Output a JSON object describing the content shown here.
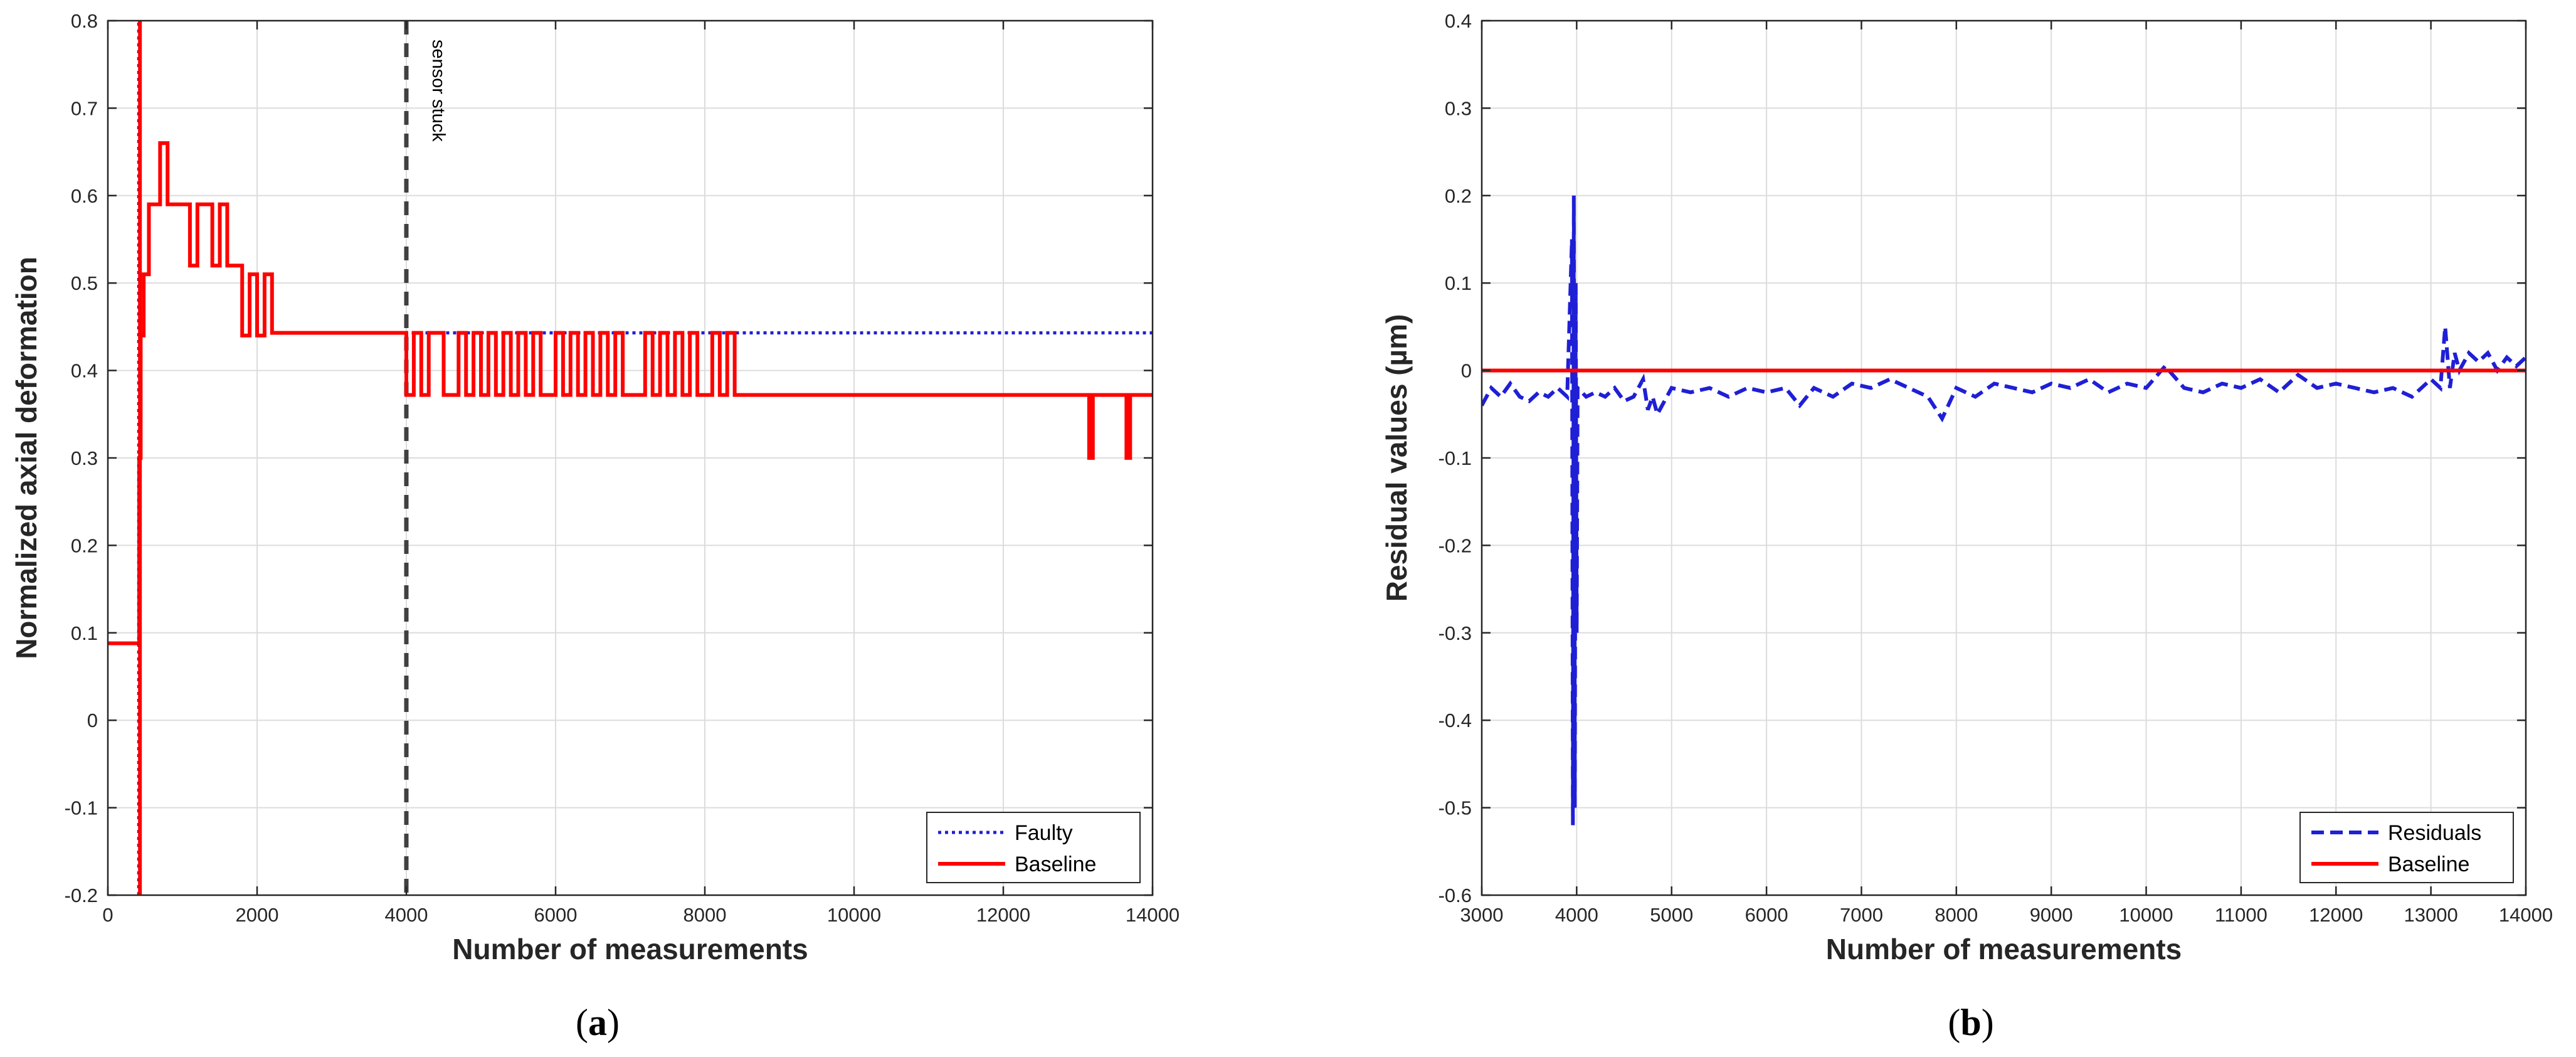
{
  "chart_data": [
    {
      "panel_label": "a",
      "type": "line",
      "xlabel": "Number of measurements",
      "ylabel": "Normalized axial deformation",
      "xlim": [
        0,
        14000
      ],
      "ylim": [
        -0.2,
        0.8
      ],
      "xticks": [
        0,
        2000,
        4000,
        6000,
        8000,
        10000,
        12000,
        14000
      ],
      "xtick_labels": [
        "0",
        "2000",
        "4000",
        "6000",
        "8000",
        "10000",
        "12000",
        "14000"
      ],
      "yticks": [
        -0.2,
        -0.1,
        0,
        0.1,
        0.2,
        0.3,
        0.4,
        0.5,
        0.6,
        0.7,
        0.8
      ],
      "ytick_labels": [
        "-0.2",
        "-0.1",
        "0",
        "0.1",
        "0.2",
        "0.3",
        "0.4",
        "0.5",
        "0.6",
        "0.7",
        "0.8"
      ],
      "grid": true,
      "legend_position": "bottom-right",
      "annotation": {
        "text": "sensor stuck",
        "x": 4000
      },
      "series": [
        {
          "name": "Faulty",
          "color": "#1f1fd6",
          "style": "dotted",
          "x": [
            0,
            400,
            420,
            440,
            480,
            550,
            650,
            700,
            800,
            900,
            1000,
            1100,
            1200,
            1300,
            1400,
            1500,
            1600,
            1700,
            1800,
            1900,
            2000,
            2100,
            2200,
            14000
          ],
          "y": [
            0.088,
            0.088,
            0.3,
            0.44,
            0.51,
            0.59,
            0.59,
            0.66,
            0.59,
            0.59,
            0.59,
            0.52,
            0.59,
            0.59,
            0.52,
            0.59,
            0.52,
            0.52,
            0.44,
            0.51,
            0.44,
            0.51,
            0.443,
            0.443
          ]
        },
        {
          "name": "Baseline",
          "color": "#ff0000",
          "style": "solid",
          "x": [
            0,
            400,
            420,
            440,
            480,
            550,
            650,
            700,
            800,
            900,
            1000,
            1100,
            1200,
            1300,
            1400,
            1500,
            1600,
            1700,
            1800,
            1900,
            2000,
            2100,
            2200,
            3900,
            4000,
            4100,
            4200,
            4300,
            4400,
            4500,
            4700,
            4800,
            4900,
            5000,
            5100,
            5200,
            5300,
            5400,
            5500,
            5600,
            5700,
            5800,
            5900,
            6000,
            6100,
            6200,
            6300,
            6400,
            6500,
            6600,
            6700,
            6800,
            6900,
            7000,
            7100,
            7200,
            7300,
            7400,
            7500,
            7600,
            7700,
            7800,
            7900,
            8000,
            8100,
            8200,
            8300,
            8400,
            9000,
            9600,
            10300,
            10700,
            12450,
            12500,
            13150,
            13200,
            13650,
            13700,
            14000
          ],
          "y": [
            0.088,
            0.088,
            0.3,
            0.44,
            0.51,
            0.59,
            0.59,
            0.66,
            0.59,
            0.59,
            0.59,
            0.52,
            0.59,
            0.59,
            0.52,
            0.59,
            0.52,
            0.52,
            0.44,
            0.51,
            0.44,
            0.51,
            0.443,
            0.443,
            0.372,
            0.443,
            0.372,
            0.443,
            0.443,
            0.372,
            0.443,
            0.372,
            0.443,
            0.372,
            0.443,
            0.372,
            0.443,
            0.372,
            0.443,
            0.372,
            0.443,
            0.372,
            0.372,
            0.443,
            0.372,
            0.443,
            0.372,
            0.443,
            0.372,
            0.443,
            0.372,
            0.443,
            0.372,
            0.372,
            0.372,
            0.443,
            0.372,
            0.443,
            0.372,
            0.443,
            0.372,
            0.443,
            0.372,
            0.372,
            0.443,
            0.372,
            0.443,
            0.372,
            0.372,
            0.372,
            0.372,
            0.372,
            0.372,
            0.372,
            0.3,
            0.372,
            0.3,
            0.372,
            0.372
          ]
        }
      ]
    },
    {
      "panel_label": "b",
      "type": "line",
      "xlabel": "Number of measurements",
      "ylabel": "Residual values (µm)",
      "xlim": [
        3000,
        14000
      ],
      "ylim": [
        -0.6,
        0.4
      ],
      "xticks": [
        3000,
        4000,
        5000,
        6000,
        7000,
        8000,
        9000,
        10000,
        11000,
        12000,
        13000,
        14000
      ],
      "xtick_labels": [
        "3000",
        "4000",
        "5000",
        "6000",
        "7000",
        "8000",
        "9000",
        "10000",
        "11000",
        "12000",
        "13000",
        "14000"
      ],
      "yticks": [
        -0.6,
        -0.5,
        -0.4,
        -0.3,
        -0.2,
        -0.1,
        0,
        0.1,
        0.2,
        0.3,
        0.4
      ],
      "ytick_labels": [
        "-0.6",
        "-0.5",
        "-0.4",
        "-0.3",
        "-0.2",
        "-0.1",
        "0",
        "0.1",
        "0.2",
        "0.3",
        "0.4"
      ],
      "grid": true,
      "legend_position": "bottom-right",
      "series": [
        {
          "name": "Residuals",
          "color": "#1f1fd6",
          "style": "dashed",
          "x": [
            3000,
            3100,
            3200,
            3300,
            3400,
            3500,
            3600,
            3700,
            3800,
            3900,
            3950,
            3960,
            3970,
            3980,
            3990,
            4000,
            4010,
            4100,
            4200,
            4300,
            4400,
            4500,
            4600,
            4700,
            4750,
            4800,
            4850,
            5000,
            5200,
            5400,
            5600,
            5800,
            6000,
            6200,
            6350,
            6500,
            6700,
            6900,
            7100,
            7300,
            7500,
            7700,
            7850,
            8000,
            8200,
            8400,
            8600,
            8800,
            9000,
            9200,
            9400,
            9600,
            9800,
            10000,
            10200,
            10400,
            10600,
            10800,
            11000,
            11200,
            11400,
            11600,
            11800,
            12000,
            12200,
            12400,
            12600,
            12800,
            13000,
            13100,
            13150,
            13200,
            13250,
            13300,
            13400,
            13500,
            13600,
            13700,
            13800,
            13900,
            14000
          ],
          "y": [
            -0.04,
            -0.02,
            -0.03,
            -0.015,
            -0.03,
            -0.035,
            -0.025,
            -0.03,
            -0.02,
            -0.03,
            0.15,
            -0.52,
            0.2,
            -0.5,
            0.1,
            -0.3,
            -0.02,
            -0.03,
            -0.025,
            -0.03,
            -0.02,
            -0.035,
            -0.03,
            -0.01,
            -0.045,
            -0.03,
            -0.05,
            -0.02,
            -0.025,
            -0.02,
            -0.03,
            -0.02,
            -0.025,
            -0.02,
            -0.04,
            -0.02,
            -0.03,
            -0.015,
            -0.02,
            -0.01,
            -0.02,
            -0.03,
            -0.055,
            -0.02,
            -0.03,
            -0.015,
            -0.02,
            -0.025,
            -0.015,
            -0.02,
            -0.01,
            -0.025,
            -0.015,
            -0.02,
            0.005,
            -0.02,
            -0.025,
            -0.015,
            -0.02,
            -0.01,
            -0.025,
            -0.005,
            -0.02,
            -0.015,
            -0.02,
            -0.025,
            -0.02,
            -0.03,
            -0.01,
            -0.02,
            0.05,
            -0.02,
            0.02,
            0.0,
            0.02,
            0.01,
            0.02,
            0.0,
            0.015,
            0.005,
            0.015
          ]
        },
        {
          "name": "Baseline",
          "color": "#ff0000",
          "style": "solid",
          "x": [
            3000,
            14000
          ],
          "y": [
            0,
            0
          ]
        }
      ]
    }
  ]
}
